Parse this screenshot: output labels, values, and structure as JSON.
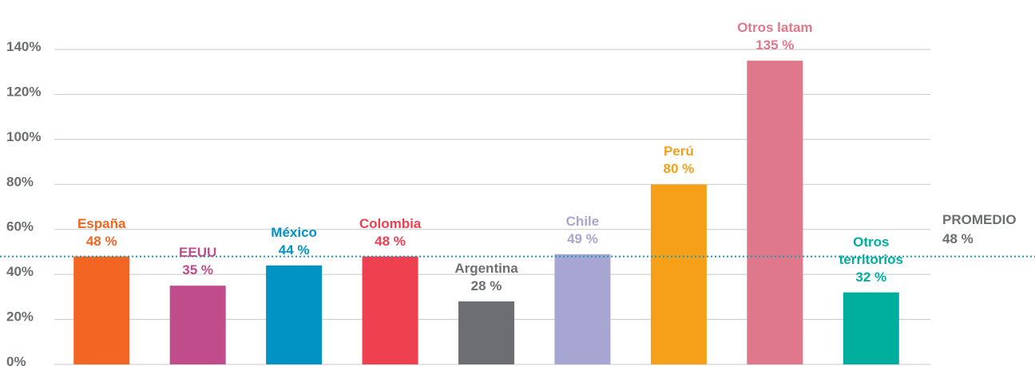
{
  "chart_data": {
    "type": "bar",
    "categories": [
      "España",
      "EEUU",
      "México",
      "Colombia",
      "Argentina",
      "Chile",
      "Perú",
      "Otros latam",
      "Otros territorios"
    ],
    "values": [
      48,
      35,
      44,
      48,
      28,
      49,
      80,
      135,
      32
    ],
    "value_labels": [
      "48 %",
      "35 %",
      "44 %",
      "48 %",
      "28 %",
      "49 %",
      "80 %",
      "135 %",
      "32 %"
    ],
    "colors": [
      "#f26522",
      "#c04c8b",
      "#0093c4",
      "#ef4050",
      "#6d6e71",
      "#a7a5d1",
      "#f6a01a",
      "#df788a",
      "#00ae9e"
    ],
    "ylim": [
      0,
      140
    ],
    "yticks": [
      {
        "value": 0,
        "label": "0%"
      },
      {
        "value": 20,
        "label": "20%"
      },
      {
        "value": 40,
        "label": "40%"
      },
      {
        "value": 60,
        "label": "60%"
      },
      {
        "value": 80,
        "label": "80%"
      },
      {
        "value": 100,
        "label": "100%"
      },
      {
        "value": 120,
        "label": "120%"
      },
      {
        "value": 140,
        "label": "140%"
      }
    ],
    "grid": true,
    "reference_line": {
      "value": 48,
      "label": "PROMEDIO",
      "value_label": "48 %",
      "color": "#1a9bb0"
    }
  }
}
